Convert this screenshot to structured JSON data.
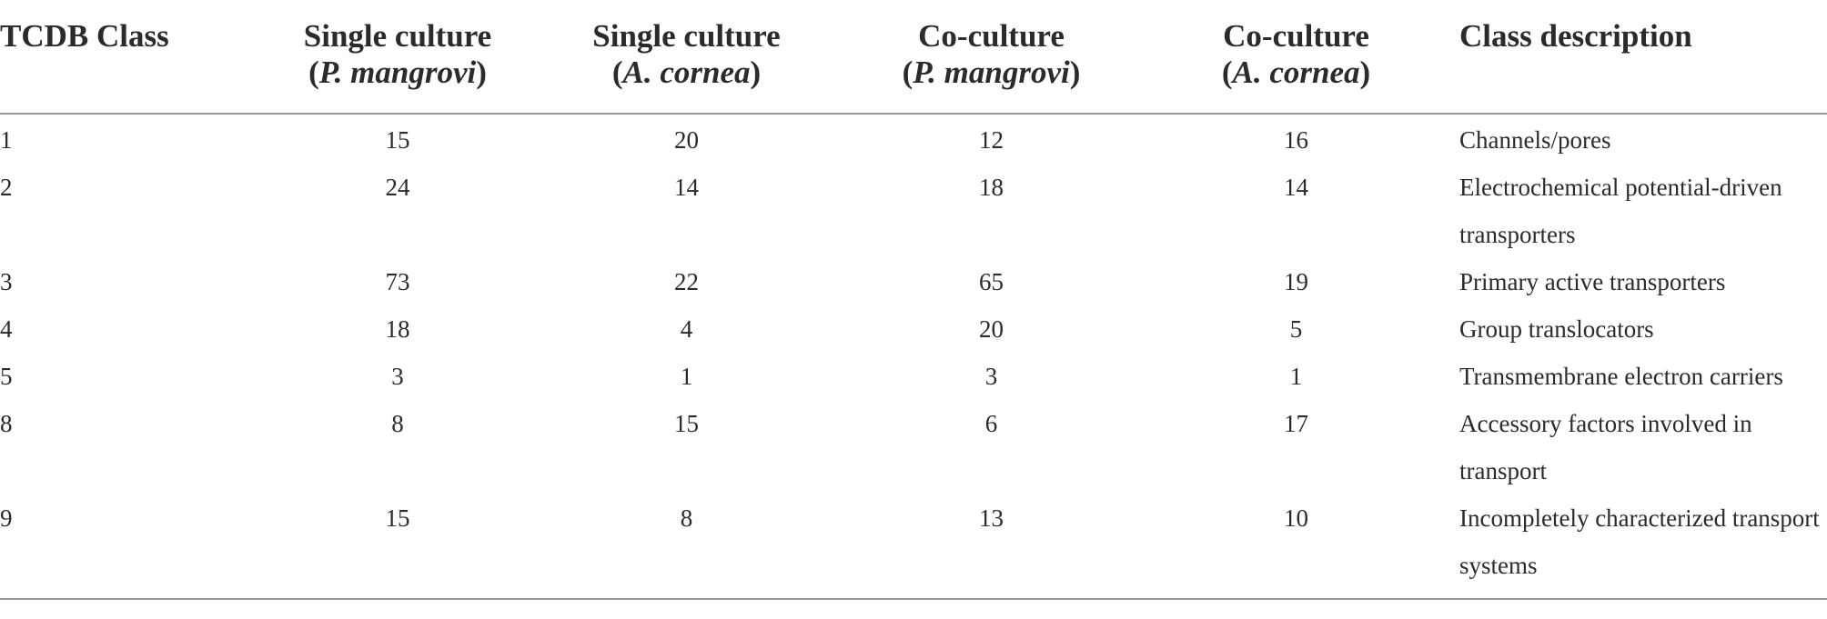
{
  "table": {
    "headers": [
      {
        "line1": "TCDB Class",
        "open": "",
        "species": "",
        "close": ""
      },
      {
        "line1": "Single culture",
        "open": "(",
        "species": "P. mangrovi",
        "close": ")"
      },
      {
        "line1": "Single culture",
        "open": "(",
        "species": "A. cornea",
        "close": ")"
      },
      {
        "line1": "Co-culture",
        "open": "(",
        "species": "P. mangrovi",
        "close": ")"
      },
      {
        "line1": "Co-culture",
        "open": "(",
        "species": "A. cornea",
        "close": ")"
      },
      {
        "line1": "Class description",
        "open": "",
        "species": "",
        "close": ""
      }
    ],
    "rows": [
      {
        "tcdb_class": "1",
        "single_p_mangrovi": "15",
        "single_a_cornea": "20",
        "co_p_mangrovi": "12",
        "co_a_cornea": "16",
        "description": "Channels/pores"
      },
      {
        "tcdb_class": "2",
        "single_p_mangrovi": "24",
        "single_a_cornea": "14",
        "co_p_mangrovi": "18",
        "co_a_cornea": "14",
        "description": "Electrochemical potential-driven transporters"
      },
      {
        "tcdb_class": "3",
        "single_p_mangrovi": "73",
        "single_a_cornea": "22",
        "co_p_mangrovi": "65",
        "co_a_cornea": "19",
        "description": "Primary active transporters"
      },
      {
        "tcdb_class": "4",
        "single_p_mangrovi": "18",
        "single_a_cornea": "4",
        "co_p_mangrovi": "20",
        "co_a_cornea": "5",
        "description": "Group translocators"
      },
      {
        "tcdb_class": "5",
        "single_p_mangrovi": "3",
        "single_a_cornea": "1",
        "co_p_mangrovi": "3",
        "co_a_cornea": "1",
        "description": "Transmembrane electron carriers"
      },
      {
        "tcdb_class": "8",
        "single_p_mangrovi": "8",
        "single_a_cornea": "15",
        "co_p_mangrovi": "6",
        "co_a_cornea": "17",
        "description": "Accessory factors involved in transport"
      },
      {
        "tcdb_class": "9",
        "single_p_mangrovi": "15",
        "single_a_cornea": "8",
        "co_p_mangrovi": "13",
        "co_a_cornea": "10",
        "description": "Incompletely characterized transport systems"
      }
    ]
  }
}
